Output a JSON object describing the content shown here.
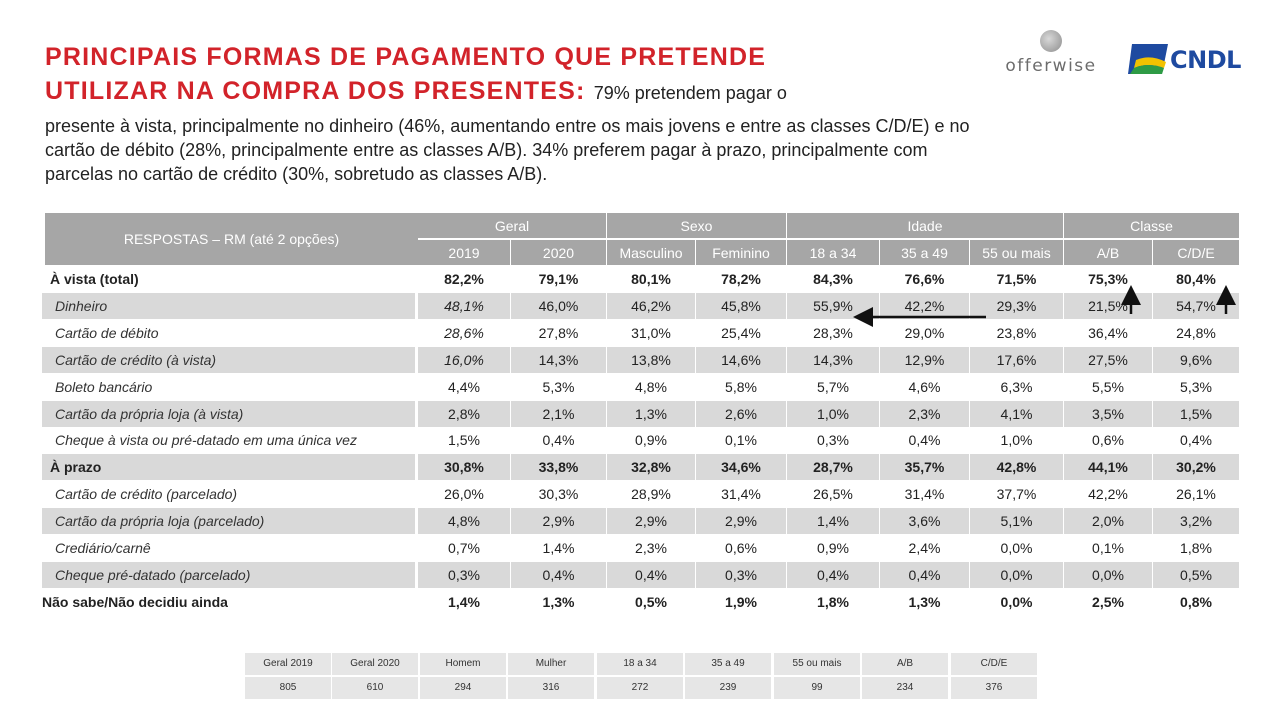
{
  "title": {
    "line1": "PRINCIPAIS FORMAS DE PAGAMENTO QUE PRETENDE",
    "line2": "UTILIZAR NA COMPRA DOS PRESENTES:",
    "line2_lead": "79% pretendem pagar o",
    "body": "presente à vista, principalmente no dinheiro (46%, aumentando entre os mais jovens e entre as classes C/D/E) e no cartão de débito (28%, principalmente entre as classes A/B). 34% preferem pagar à prazo, principalmente com parcelas no cartão de crédito (30%, sobretudo as classes A/B)."
  },
  "logos": {
    "offerwise": "offerwise",
    "cndl": "CNDL"
  },
  "colors": {
    "title_red": "#d2232a",
    "header_gray": "#a6a6a6",
    "row_shade": "#d9d9d9",
    "cndl_blue": "#1e4aa0",
    "cndl_yellow": "#f2c200",
    "cndl_green": "#2e9b45"
  },
  "table": {
    "respostas_label": "RESPOSTAS – RM (até 2 opções)",
    "groups": [
      "Geral",
      "Sexo",
      "Idade",
      "Classe"
    ],
    "columns": [
      "2019",
      "2020",
      "Masculino",
      "Feminino",
      "18 a 34",
      "35 a 49",
      "55 ou mais",
      "A/B",
      "C/D/E"
    ],
    "rows": [
      {
        "label": "À vista (total)",
        "values": [
          "82,2%",
          "79,1%",
          "80,1%",
          "78,2%",
          "84,3%",
          "76,6%",
          "71,5%",
          "75,3%",
          "80,4%"
        ]
      },
      {
        "label": "Dinheiro",
        "values": [
          "48,1%",
          "46,0%",
          "46,2%",
          "45,8%",
          "55,9%",
          "42,2%",
          "29,3%",
          "21,5%",
          "54,7%"
        ]
      },
      {
        "label": "Cartão de débito",
        "values": [
          "28,6%",
          "27,8%",
          "31,0%",
          "25,4%",
          "28,3%",
          "29,0%",
          "23,8%",
          "36,4%",
          "24,8%"
        ]
      },
      {
        "label": "Cartão de crédito (à vista)",
        "values": [
          "16,0%",
          "14,3%",
          "13,8%",
          "14,6%",
          "14,3%",
          "12,9%",
          "17,6%",
          "27,5%",
          "9,6%"
        ]
      },
      {
        "label": "Boleto bancário",
        "values": [
          "4,4%",
          "5,3%",
          "4,8%",
          "5,8%",
          "5,7%",
          "4,6%",
          "6,3%",
          "5,5%",
          "5,3%"
        ]
      },
      {
        "label": "Cartão da própria loja (à vista)",
        "values": [
          "2,8%",
          "2,1%",
          "1,3%",
          "2,6%",
          "1,0%",
          "2,3%",
          "4,1%",
          "3,5%",
          "1,5%"
        ]
      },
      {
        "label": "Cheque à vista ou pré-datado em uma única vez",
        "values": [
          "1,5%",
          "0,4%",
          "0,9%",
          "0,1%",
          "0,3%",
          "0,4%",
          "1,0%",
          "0,6%",
          "0,4%"
        ]
      },
      {
        "label": "À prazo",
        "values": [
          "30,8%",
          "33,8%",
          "32,8%",
          "34,6%",
          "28,7%",
          "35,7%",
          "42,8%",
          "44,1%",
          "30,2%"
        ]
      },
      {
        "label": "Cartão de crédito (parcelado)",
        "values": [
          "26,0%",
          "30,3%",
          "28,9%",
          "31,4%",
          "26,5%",
          "31,4%",
          "37,7%",
          "42,2%",
          "26,1%"
        ]
      },
      {
        "label": "Cartão da própria loja (parcelado)",
        "values": [
          "4,8%",
          "2,9%",
          "2,9%",
          "2,9%",
          "1,4%",
          "3,6%",
          "5,1%",
          "2,0%",
          "3,2%"
        ]
      },
      {
        "label": "Crediário/carnê",
        "values": [
          "0,7%",
          "1,4%",
          "2,3%",
          "0,6%",
          "0,9%",
          "2,4%",
          "0,0%",
          "0,1%",
          "1,8%"
        ]
      },
      {
        "label": "Cheque pré-datado (parcelado)",
        "values": [
          "0,3%",
          "0,4%",
          "0,4%",
          "0,3%",
          "0,4%",
          "0,4%",
          "0,0%",
          "0,0%",
          "0,5%"
        ]
      },
      {
        "label": "Não sabe/Não decidiu ainda",
        "values": [
          "1,4%",
          "1,3%",
          "0,5%",
          "1,9%",
          "1,8%",
          "1,3%",
          "0,0%",
          "2,5%",
          "0,8%"
        ]
      }
    ]
  },
  "base": {
    "labels": [
      "Geral 2019",
      "Geral 2020",
      "Homem",
      "Mulher",
      "18 a 34",
      "35 a 49",
      "55 ou mais",
      "A/B",
      "C/D/E"
    ],
    "values": [
      "805",
      "610",
      "294",
      "316",
      "272",
      "239",
      "99",
      "234",
      "376"
    ]
  }
}
